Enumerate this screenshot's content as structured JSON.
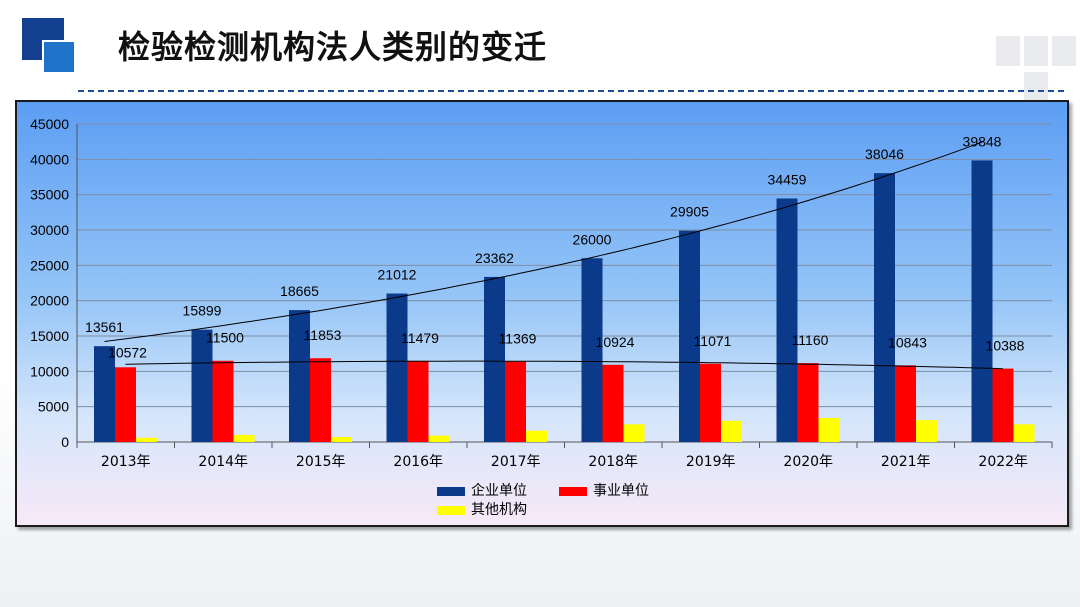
{
  "page": {
    "title": "检验检测机构法人类别的变迁"
  },
  "colors": {
    "enterprise": "#0b3a8a",
    "institution": "#ff0000",
    "other": "#ffff00",
    "brand": "#123f8f"
  },
  "chart_data": {
    "type": "bar",
    "title": "",
    "categories": [
      "2013年",
      "2014年",
      "2015年",
      "2016年",
      "2017年",
      "2018年",
      "2019年",
      "2020年",
      "2021年",
      "2022年"
    ],
    "series": [
      {
        "name": "企业单位",
        "values": [
          13561,
          15899,
          18665,
          21012,
          23362,
          26000,
          29905,
          34459,
          38046,
          39848
        ],
        "labels": [
          "13561",
          "15899",
          "18665",
          "21012",
          "23362",
          "26000",
          "29905",
          "34459",
          "38046",
          "39848"
        ]
      },
      {
        "name": "事业单位",
        "values": [
          10572,
          11500,
          11853,
          11479,
          11369,
          10924,
          11071,
          11160,
          10843,
          10388
        ],
        "labels": [
          "10572",
          "11500",
          "11853",
          "11479",
          "11369",
          "10924",
          "11071",
          "11160",
          "10843",
          "10388"
        ]
      },
      {
        "name": "其他机构",
        "values": [
          600,
          1000,
          700,
          900,
          1600,
          2500,
          3000,
          3400,
          3100,
          2500
        ],
        "labels": []
      }
    ],
    "trendlines": [
      "企业单位",
      "事业单位"
    ],
    "ylim": [
      0,
      45000
    ],
    "yticks": [
      "0",
      "5000",
      "10000",
      "15000",
      "20000",
      "25000",
      "30000",
      "35000",
      "40000",
      "45000"
    ],
    "grid": true,
    "legend": "bottom"
  }
}
